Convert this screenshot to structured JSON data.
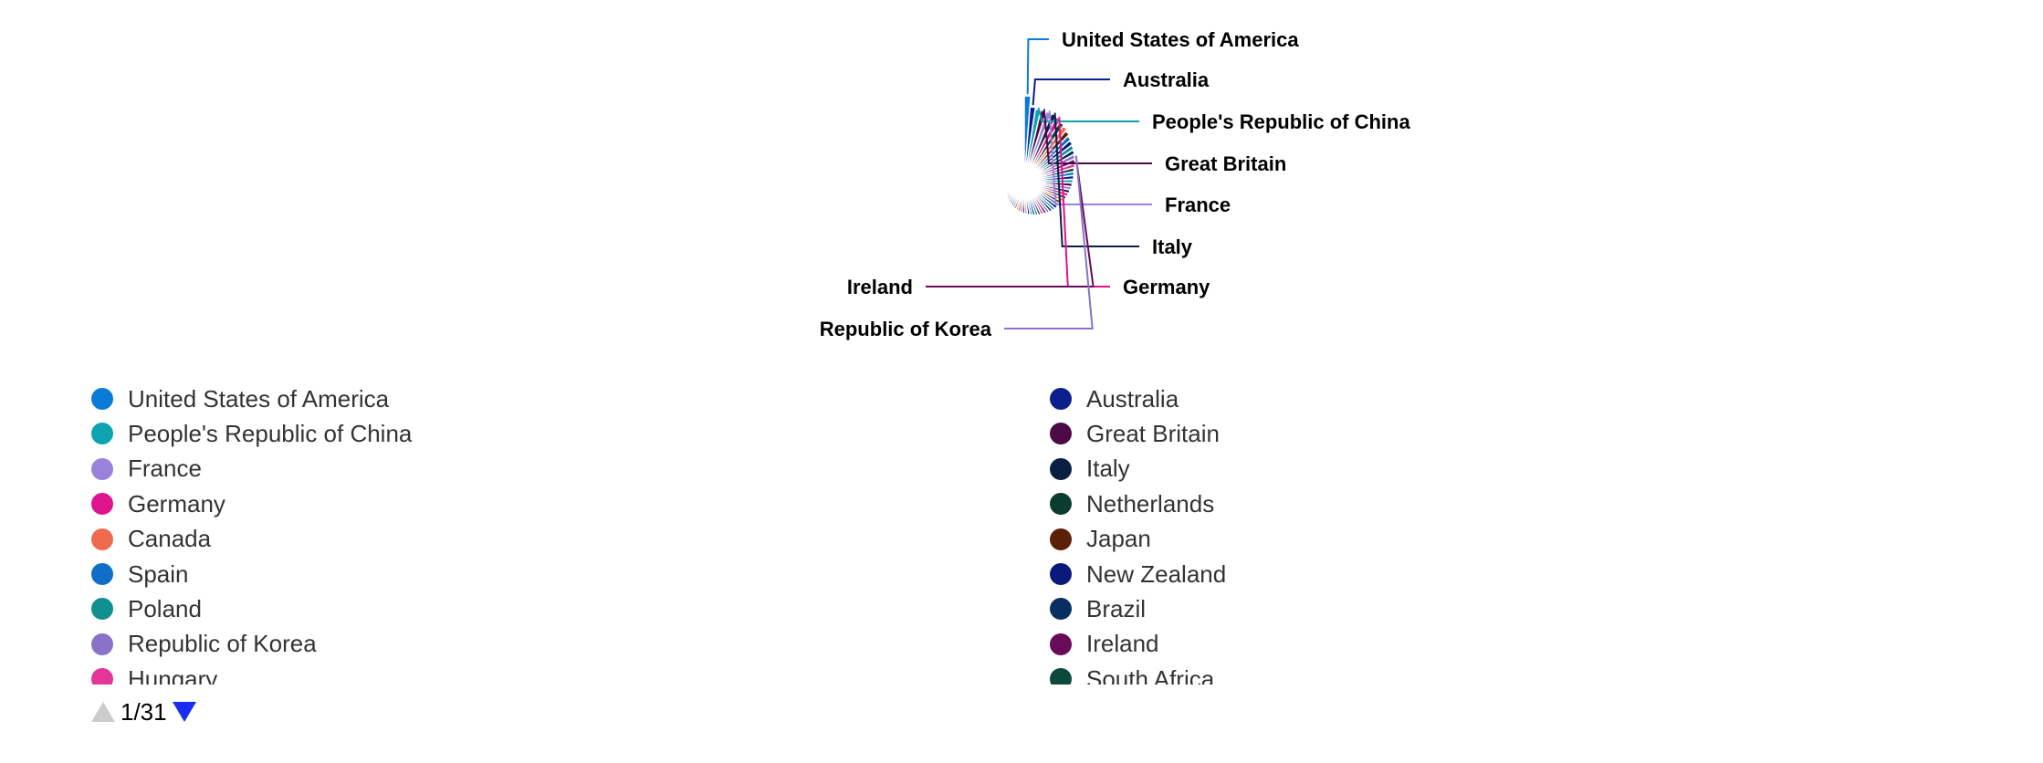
{
  "chart_data": {
    "type": "pie",
    "style": "nightingale-rose",
    "labeled_slices": [
      {
        "label": "United States of America",
        "color": "#0a7bd8"
      },
      {
        "label": "Australia",
        "color": "#0d1f8c"
      },
      {
        "label": "People's Republic of China",
        "color": "#0fa3b1"
      },
      {
        "label": "Great Britain",
        "color": "#4b0a45"
      },
      {
        "label": "France",
        "color": "#9a82db"
      },
      {
        "label": "Italy",
        "color": "#0b1f44"
      },
      {
        "label": "Germany",
        "color": "#e0148c"
      },
      {
        "label": "Ireland",
        "color": "#6a0a5a"
      },
      {
        "label": "Republic of Korea",
        "color": "#8a72c8"
      }
    ],
    "palette": [
      "#0a7bd8",
      "#0d1f8c",
      "#0fa3b1",
      "#4b0a45",
      "#9a82db",
      "#0b1f44",
      "#e0148c",
      "#0b3d2f",
      "#f06a4f",
      "#5a2108",
      "#0e6fc7",
      "#0a1a7a",
      "#0f8f8f",
      "#073060",
      "#8a72c8",
      "#6a0a5a",
      "#e3359a",
      "#0b4a3a"
    ],
    "series": [
      {
        "name": "United States of America",
        "value": 100
      },
      {
        "name": "Australia",
        "value": 87
      },
      {
        "name": "People's Republic of China",
        "value": 85
      },
      {
        "name": "Great Britain",
        "value": 85
      },
      {
        "name": "France",
        "value": 85
      },
      {
        "name": "Italy",
        "value": 85
      },
      {
        "name": "Germany",
        "value": 83
      },
      {
        "name": "Netherlands",
        "value": 80
      },
      {
        "name": "Canada",
        "value": 78
      },
      {
        "name": "Japan",
        "value": 75
      },
      {
        "name": "Spain",
        "value": 72
      },
      {
        "name": "New Zealand",
        "value": 70
      },
      {
        "name": "Poland",
        "value": 68
      },
      {
        "name": "Brazil",
        "value": 66
      },
      {
        "name": "Republic of Korea",
        "value": 64
      },
      {
        "name": "Ireland",
        "value": 62
      },
      {
        "name": "Hungary",
        "value": 60
      },
      {
        "name": "South Africa",
        "value": 58
      },
      {
        "name": "",
        "value": 57
      },
      {
        "name": "",
        "value": 56
      },
      {
        "name": "",
        "value": 55
      },
      {
        "name": "",
        "value": 54
      },
      {
        "name": "",
        "value": 53
      },
      {
        "name": "",
        "value": 52
      },
      {
        "name": "",
        "value": 51
      },
      {
        "name": "",
        "value": 50
      },
      {
        "name": "",
        "value": 49
      },
      {
        "name": "",
        "value": 48
      },
      {
        "name": "",
        "value": 47
      },
      {
        "name": "",
        "value": 46
      },
      {
        "name": "",
        "value": 45
      },
      {
        "name": "",
        "value": 44
      },
      {
        "name": "",
        "value": 43
      },
      {
        "name": "",
        "value": 42
      },
      {
        "name": "",
        "value": 41
      },
      {
        "name": "",
        "value": 40
      },
      {
        "name": "",
        "value": 39
      },
      {
        "name": "",
        "value": 38
      },
      {
        "name": "",
        "value": 37
      },
      {
        "name": "",
        "value": 36
      },
      {
        "name": "",
        "value": 35
      },
      {
        "name": "",
        "value": 34
      },
      {
        "name": "",
        "value": 33
      },
      {
        "name": "",
        "value": 32
      },
      {
        "name": "",
        "value": 31
      },
      {
        "name": "",
        "value": 30
      },
      {
        "name": "",
        "value": 29
      },
      {
        "name": "",
        "value": 28
      },
      {
        "name": "",
        "value": 27
      },
      {
        "name": "",
        "value": 26
      },
      {
        "name": "",
        "value": 25
      },
      {
        "name": "",
        "value": 24
      },
      {
        "name": "",
        "value": 23
      },
      {
        "name": "",
        "value": 22
      },
      {
        "name": "",
        "value": 21
      }
    ]
  },
  "legend": {
    "items": [
      {
        "label": "United States of America",
        "color": "#0a7bd8"
      },
      {
        "label": "Australia",
        "color": "#0d1f8c"
      },
      {
        "label": "People's Republic of China",
        "color": "#0fa3b1"
      },
      {
        "label": "Great Britain",
        "color": "#4b0a45"
      },
      {
        "label": "France",
        "color": "#9a82db"
      },
      {
        "label": "Italy",
        "color": "#0b1f44"
      },
      {
        "label": "Germany",
        "color": "#e0148c"
      },
      {
        "label": "Netherlands",
        "color": "#0b3d2f"
      },
      {
        "label": "Canada",
        "color": "#f06a4f"
      },
      {
        "label": "Japan",
        "color": "#5a2108"
      },
      {
        "label": "Spain",
        "color": "#0e6fc7"
      },
      {
        "label": "New Zealand",
        "color": "#0a1a7a"
      },
      {
        "label": "Poland",
        "color": "#0f8f8f"
      },
      {
        "label": "Brazil",
        "color": "#073060"
      },
      {
        "label": "Republic of Korea",
        "color": "#8a72c8"
      },
      {
        "label": "Ireland",
        "color": "#6a0a5a"
      },
      {
        "label": "Hungary",
        "color": "#e3359a"
      },
      {
        "label": "South Africa",
        "color": "#0b4a3a"
      }
    ]
  },
  "pager": {
    "text": "1/31"
  }
}
